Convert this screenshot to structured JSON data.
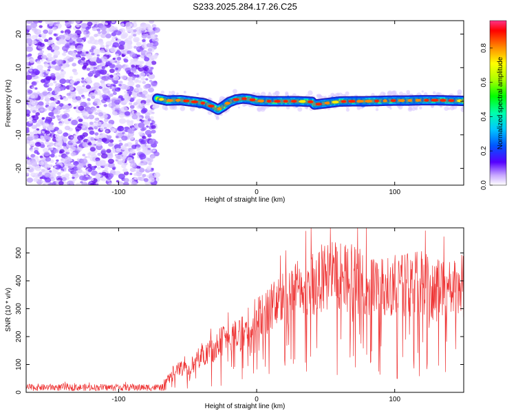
{
  "title": "S233.2025.284.17.26.C25",
  "chart_data": [
    {
      "type": "heatmap",
      "title": "S233.2025.284.17.26.C25",
      "xlabel": "Height of straight line (km)",
      "ylabel": "Frequency (Hz)",
      "xlim": [
        -167,
        150
      ],
      "ylim": [
        -25,
        24
      ],
      "xticks": [
        -100,
        0,
        100
      ],
      "yticks": [
        -20,
        -10,
        0,
        10,
        20
      ],
      "noise_region": [
        -167,
        -72
      ],
      "signal_region": [
        -72,
        150
      ],
      "ridge": {
        "heights": [
          -72,
          -65,
          -55,
          -45,
          -38,
          -32,
          -28,
          -24,
          -20,
          -15,
          -10,
          -5,
          0,
          10,
          20,
          30,
          40,
          42,
          50,
          60,
          70,
          80,
          90,
          100,
          110,
          120,
          130,
          140,
          150
        ],
        "frequencies": [
          0.8,
          0.2,
          0.3,
          -0.2,
          -0.6,
          -1.6,
          -2.5,
          -1.5,
          -0.3,
          0.5,
          0.8,
          0.6,
          0.1,
          0.0,
          0.0,
          0.0,
          -0.2,
          -1.0,
          -0.6,
          -0.1,
          0.0,
          0.0,
          0.1,
          0.2,
          0.2,
          0.3,
          0.3,
          0.2,
          0.1
        ]
      },
      "colorbar": {
        "label": "Normalized spectral amplitude",
        "ticks": [
          0.0,
          0.2,
          0.4,
          0.6,
          0.8
        ],
        "range": [
          0.0,
          0.96
        ]
      }
    },
    {
      "type": "line",
      "xlabel": "Height of straight line (km)",
      "ylabel": "SNR (10 * v/v)",
      "xlim": [
        -167,
        150
      ],
      "ylim": [
        0,
        590
      ],
      "xticks": [
        -100,
        0,
        100
      ],
      "yticks": [
        0,
        100,
        200,
        300,
        400,
        500
      ],
      "color": "#ee3333",
      "series": [
        {
          "name": "SNR",
          "envelope_x": [
            -167,
            -120,
            -90,
            -70,
            -65,
            -60,
            -50,
            -45,
            -40,
            -30,
            -25,
            -20,
            -15,
            -10,
            0,
            10,
            20,
            30,
            40,
            50,
            60,
            70,
            80,
            90,
            100,
            110,
            120,
            130,
            140,
            150
          ],
          "envelope_y": [
            20,
            20,
            18,
            20,
            60,
            100,
            110,
            130,
            170,
            200,
            230,
            240,
            250,
            270,
            330,
            380,
            420,
            460,
            500,
            510,
            530,
            520,
            490,
            470,
            480,
            480,
            490,
            460,
            470,
            480
          ]
        }
      ]
    }
  ]
}
